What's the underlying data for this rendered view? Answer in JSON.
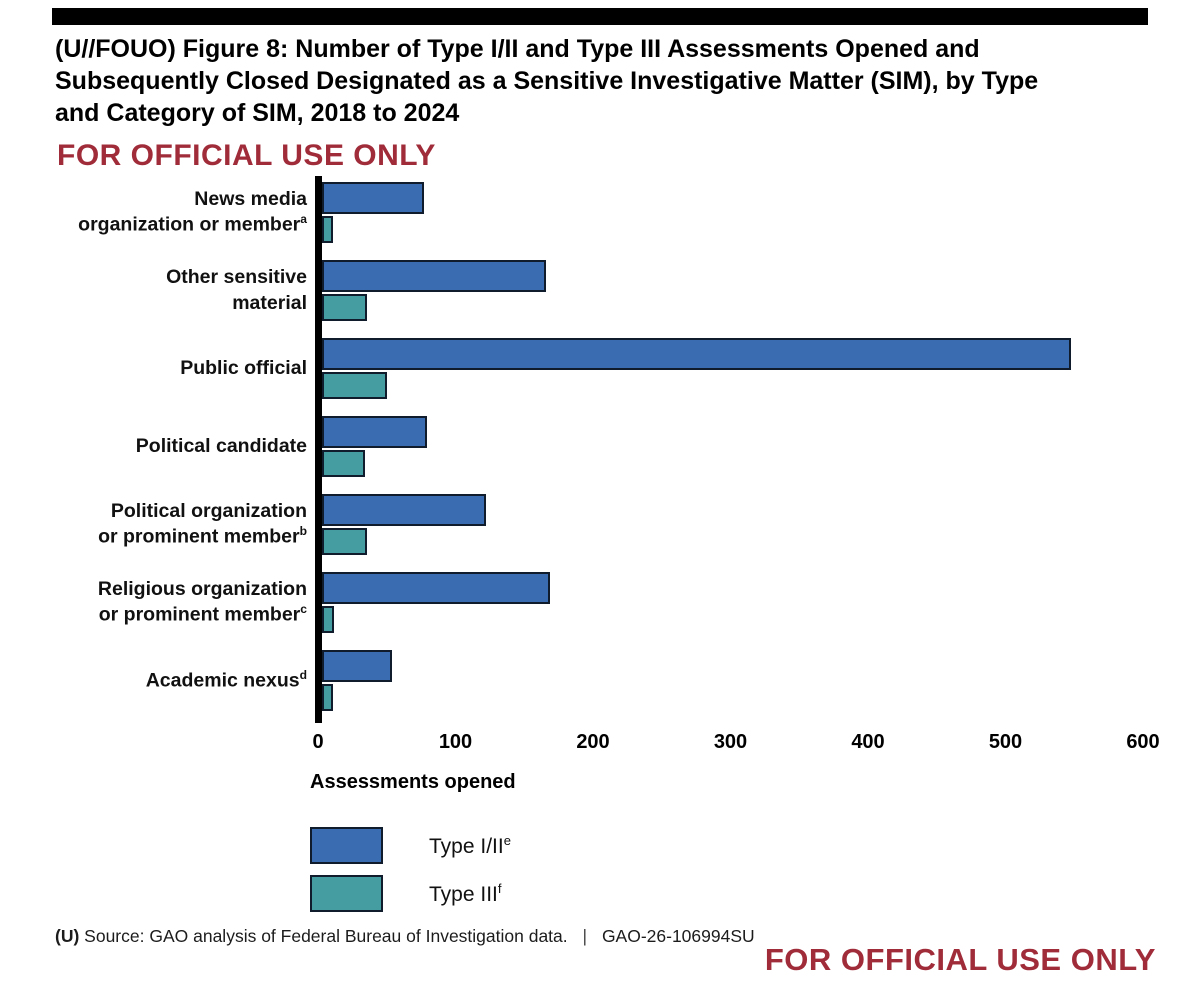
{
  "page": {
    "classification_banner_top": "FOR OFFICIAL USE ONLY",
    "classification_banner_bottom": "FOR OFFICIAL USE ONLY",
    "title_lines": [
      "(U//FOUO) Figure 8: Number of Type I/II and Type III Assessments Opened and",
      "Subsequently Closed Designated as a Sensitive Investigative Matter (SIM), by Type",
      "and Category of SIM, 2018 to 2024"
    ],
    "source_prefix": "(U)",
    "source_text": "Source: GAO analysis of Federal Bureau of Investigation data.",
    "source_separator": "|",
    "report_number": "GAO-26-106994SU"
  },
  "colors": {
    "type_1_2_blue": "#3a6cb2",
    "type_3_teal": "#459da2",
    "bar_border": "#101c2c",
    "banner_red": "#a02c3a",
    "redaction_black": "#000000"
  },
  "legend": {
    "position": "bottom-left",
    "items": [
      {
        "label": "Type I/II",
        "sup": "e",
        "color": "#3a6cb2"
      },
      {
        "label": "Type III",
        "sup": "f",
        "color": "#459da2"
      }
    ]
  },
  "chart_data": {
    "type": "bar",
    "orientation": "horizontal",
    "title": "(U//FOUO) Figure 8: Number of Type I/II and Type III Assessments Opened and Subsequently Closed Designated as a Sensitive Investigative Matter (SIM), by Type and Category of SIM, 2018 to 2024",
    "xlabel": "Assessments opened",
    "ylabel": "",
    "xlim": [
      0,
      600
    ],
    "xticks": [
      0,
      100,
      200,
      300,
      400,
      500,
      600
    ],
    "grid": false,
    "categories": [
      {
        "label": "News media organization or member",
        "line1": "News media",
        "line2": "organization or member",
        "sup": "a"
      },
      {
        "label": "Other sensitive material",
        "line1": "Other sensitive",
        "line2": "material",
        "sup": ""
      },
      {
        "label": "Public official",
        "line1": "Public official",
        "line2": "",
        "sup": ""
      },
      {
        "label": "Political candidate",
        "line1": "Political candidate",
        "line2": "",
        "sup": ""
      },
      {
        "label": "Political organization or prominent member",
        "line1": "Political organization",
        "line2": "or prominent member",
        "sup": "b"
      },
      {
        "label": "Religious organization or prominent member",
        "line1": "Religious organization",
        "line2": "or prominent member",
        "sup": "c"
      },
      {
        "label": "Academic nexus",
        "line1": "Academic nexus",
        "line2": "",
        "sup": "d"
      }
    ],
    "series": [
      {
        "name": "Type I/II",
        "sup": "e",
        "color": "#3a6cb2",
        "values": [
          74,
          163,
          545,
          76,
          119,
          166,
          51
        ]
      },
      {
        "name": "Type III",
        "sup": "f",
        "color": "#459da2",
        "values": [
          8,
          33,
          47,
          31,
          33,
          9,
          8
        ]
      }
    ]
  }
}
